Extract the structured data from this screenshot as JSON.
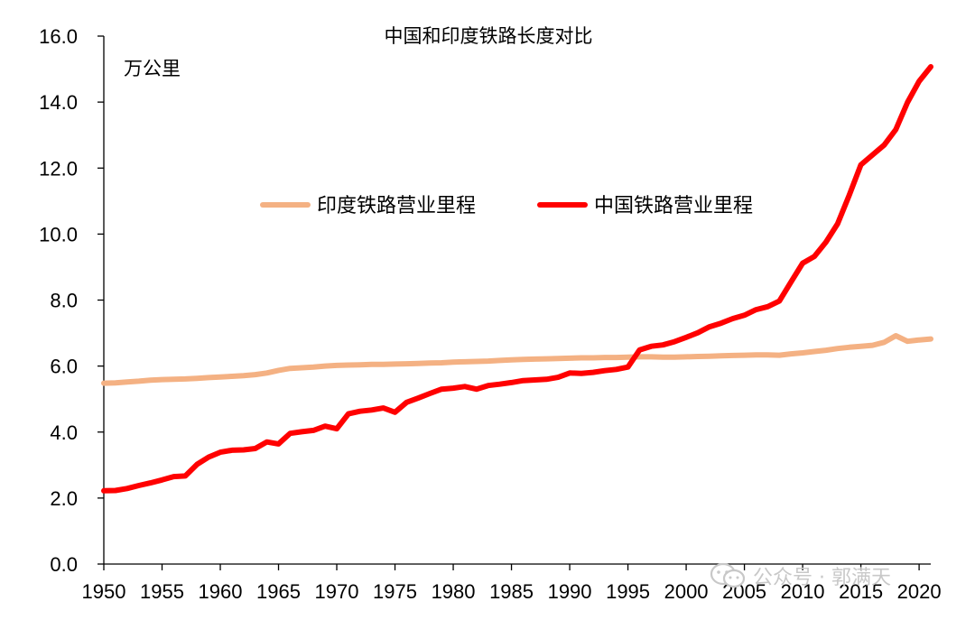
{
  "chart_data": {
    "type": "line",
    "title": "中国和印度铁路长度对比",
    "unit_label": "万公里",
    "ylim": [
      0,
      16
    ],
    "yticks": [
      "0.0",
      "2.0",
      "4.0",
      "6.0",
      "8.0",
      "10.0",
      "12.0",
      "14.0",
      "16.0"
    ],
    "xlim": [
      1950,
      2021
    ],
    "xticks": [
      "1950",
      "1955",
      "1960",
      "1965",
      "1970",
      "1975",
      "1980",
      "1985",
      "1990",
      "1995",
      "2000",
      "2005",
      "2010",
      "2015",
      "2020"
    ],
    "grid": false,
    "legend_position": "center-left",
    "series": [
      {
        "name": "印度铁路营业里程",
        "color": "#f4b183",
        "x": [
          1950,
          1951,
          1952,
          1953,
          1954,
          1955,
          1956,
          1957,
          1958,
          1959,
          1960,
          1961,
          1962,
          1963,
          1964,
          1965,
          1966,
          1967,
          1968,
          1969,
          1970,
          1971,
          1972,
          1973,
          1974,
          1975,
          1976,
          1977,
          1978,
          1979,
          1980,
          1981,
          1982,
          1983,
          1984,
          1985,
          1986,
          1987,
          1988,
          1989,
          1990,
          1991,
          1992,
          1993,
          1994,
          1995,
          1996,
          1997,
          1998,
          1999,
          2000,
          2001,
          2002,
          2003,
          2004,
          2005,
          2006,
          2007,
          2008,
          2009,
          2010,
          2011,
          2012,
          2013,
          2014,
          2015,
          2016,
          2017,
          2018,
          2019,
          2020,
          2021
        ],
        "values": [
          5.48,
          5.49,
          5.52,
          5.54,
          5.57,
          5.59,
          5.6,
          5.61,
          5.63,
          5.65,
          5.67,
          5.69,
          5.71,
          5.74,
          5.79,
          5.87,
          5.93,
          5.95,
          5.97,
          6.0,
          6.02,
          6.03,
          6.04,
          6.05,
          6.05,
          6.06,
          6.07,
          6.08,
          6.09,
          6.1,
          6.12,
          6.13,
          6.14,
          6.15,
          6.17,
          6.19,
          6.2,
          6.21,
          6.22,
          6.23,
          6.24,
          6.25,
          6.25,
          6.26,
          6.26,
          6.27,
          6.28,
          6.28,
          6.27,
          6.27,
          6.28,
          6.29,
          6.3,
          6.31,
          6.32,
          6.33,
          6.34,
          6.34,
          6.33,
          6.37,
          6.4,
          6.44,
          6.48,
          6.53,
          6.57,
          6.6,
          6.63,
          6.72,
          6.92,
          6.75,
          6.79,
          6.82
        ]
      },
      {
        "name": "中国铁路营业里程",
        "color": "#ff0000",
        "x": [
          1950,
          1951,
          1952,
          1953,
          1954,
          1955,
          1956,
          1957,
          1958,
          1959,
          1960,
          1961,
          1962,
          1963,
          1964,
          1965,
          1966,
          1967,
          1968,
          1969,
          1970,
          1971,
          1972,
          1973,
          1974,
          1975,
          1976,
          1977,
          1978,
          1979,
          1980,
          1981,
          1982,
          1983,
          1984,
          1985,
          1986,
          1987,
          1988,
          1989,
          1990,
          1991,
          1992,
          1993,
          1994,
          1995,
          1996,
          1997,
          1998,
          1999,
          2000,
          2001,
          2002,
          2003,
          2004,
          2005,
          2006,
          2007,
          2008,
          2009,
          2010,
          2011,
          2012,
          2013,
          2014,
          2015,
          2016,
          2017,
          2018,
          2019,
          2020,
          2021
        ],
        "values": [
          2.22,
          2.23,
          2.29,
          2.38,
          2.46,
          2.55,
          2.65,
          2.67,
          3.02,
          3.24,
          3.39,
          3.45,
          3.46,
          3.5,
          3.7,
          3.64,
          3.96,
          4.01,
          4.05,
          4.18,
          4.1,
          4.55,
          4.63,
          4.67,
          4.73,
          4.6,
          4.9,
          5.03,
          5.17,
          5.3,
          5.33,
          5.38,
          5.3,
          5.41,
          5.45,
          5.5,
          5.56,
          5.58,
          5.6,
          5.66,
          5.79,
          5.78,
          5.81,
          5.86,
          5.9,
          5.97,
          6.49,
          6.6,
          6.64,
          6.74,
          6.87,
          7.01,
          7.19,
          7.3,
          7.44,
          7.54,
          7.71,
          7.8,
          7.97,
          8.55,
          9.12,
          9.32,
          9.76,
          10.31,
          11.18,
          12.1,
          12.4,
          12.7,
          13.17,
          13.99,
          14.63,
          15.07
        ]
      }
    ]
  },
  "watermark": {
    "text": "公众号 · 郭满天",
    "icon": "wechat-icon"
  }
}
